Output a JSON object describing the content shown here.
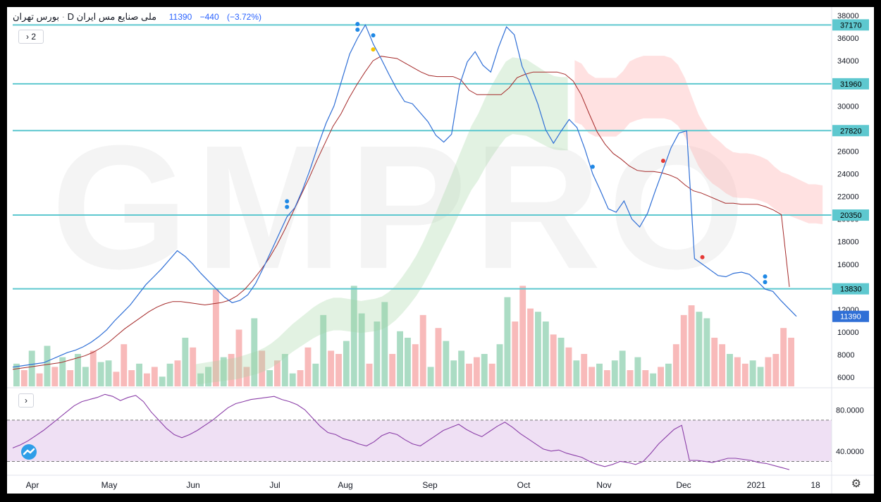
{
  "legend": {
    "exchange": "بورس تهران",
    "interval": "D",
    "symbol": "ملی صنایع مس ایران",
    "price": "11390",
    "change": "−440",
    "change_pct": "(−3.72%)"
  },
  "buttons": {
    "collapse_main": "2",
    "collapse_indicator": "›"
  },
  "watermark": "GMPRO",
  "colors": {
    "price": "#2f6fd6",
    "baseline": "#a52a2a",
    "levels": "#5ec8cf",
    "cloud_bull": "#9fd49f",
    "cloud_bear": "#ffa8a8",
    "vol_up": "#8fd0b0",
    "vol_down": "#f5a3a3",
    "rsi": "#8b3fa8",
    "rsi_band": "#efe0f4"
  },
  "chart_data": [
    {
      "type": "line",
      "y_axis_ticks": [
        6000,
        8000,
        10000,
        12000,
        14000,
        16000,
        18000,
        20000,
        22000,
        24000,
        26000,
        28000,
        30000,
        32000,
        34000,
        36000,
        38000
      ],
      "ylim": [
        5200,
        38500
      ],
      "x_axis_labels": [
        "Apr",
        "May",
        "Jun",
        "Jul",
        "Aug",
        "Sep",
        "Oct",
        "Nov",
        "Dec",
        "2021",
        "18"
      ],
      "levels": [
        37170,
        31960,
        27820,
        20350,
        13830
      ],
      "last_price": 11390,
      "series": [
        {
          "values": [
            6900,
            7000,
            7100,
            7200,
            7300,
            7600,
            7900,
            8200,
            8400,
            8700,
            9100,
            9600,
            10200,
            11000,
            11700,
            12400,
            13300,
            14200,
            14900,
            15600,
            16400,
            17200,
            16700,
            16000,
            15200,
            14500,
            13800,
            13100,
            12600,
            12800,
            13300,
            14300,
            15700,
            17200,
            18700,
            20200,
            21000,
            22600,
            24500,
            26600,
            28500,
            30000,
            32300,
            34600,
            36000,
            37170,
            35500,
            34200,
            32800,
            31500,
            30400,
            30200,
            29400,
            28600,
            27400,
            26800,
            27500,
            31800,
            33900,
            34800,
            33600,
            33000,
            35200,
            37000,
            36300,
            33500,
            32000,
            30200,
            27900,
            26700,
            27800,
            28800,
            28100,
            26200,
            24000,
            22500,
            20900,
            20600,
            21600,
            20000,
            19300,
            20500,
            22500,
            24400,
            26300,
            27600,
            27800,
            16500,
            16000,
            15500,
            15000,
            14900,
            15200,
            15300,
            15100,
            14500,
            13800,
            13600,
            12800,
            12100,
            11390
          ]
        },
        {
          "values": [
            6700,
            6800,
            6900,
            7000,
            7100,
            7200,
            7300,
            7500,
            7700,
            7900,
            8200,
            8600,
            9100,
            9700,
            10300,
            10800,
            11300,
            11800,
            12200,
            12500,
            12700,
            12700,
            12600,
            12500,
            12400,
            12500,
            12600,
            12800,
            13200,
            13800,
            14600,
            15500,
            16500,
            17700,
            19100,
            20600,
            22100,
            23600,
            25200,
            26700,
            28200,
            29300,
            30700,
            31900,
            33000,
            34000,
            34400,
            34300,
            34200,
            33800,
            33400,
            33000,
            32700,
            32600,
            32600,
            32600,
            32300,
            31400,
            31000,
            31000,
            31000,
            31000,
            31600,
            32500,
            32800,
            33000,
            33000,
            33000,
            33000,
            32800,
            32200,
            31000,
            29300,
            27700,
            26600,
            25800,
            25300,
            24700,
            24300,
            24200,
            24200,
            24100,
            23900,
            23600,
            23000,
            22500,
            22300,
            22000,
            21700,
            21400,
            21400,
            21300,
            21300,
            21300,
            21100,
            20800,
            20400,
            14000
          ]
        }
      ]
    },
    {
      "type": "bar",
      "volume_colors": [
        "up",
        "down",
        "up",
        "down",
        "up",
        "down",
        "up",
        "down",
        "up",
        "up",
        "down",
        "up",
        "up",
        "down",
        "down",
        "down",
        "up",
        "down",
        "down",
        "up",
        "up",
        "down",
        "up",
        "down",
        "up",
        "up",
        "down",
        "up",
        "down",
        "down",
        "down",
        "up",
        "down",
        "up",
        "down",
        "up",
        "up",
        "down",
        "down",
        "up",
        "up",
        "down",
        "down",
        "up",
        "up",
        "up",
        "down",
        "up",
        "up",
        "down",
        "up",
        "up",
        "down",
        "down",
        "up",
        "down",
        "up",
        "up",
        "up",
        "down",
        "down",
        "up",
        "down",
        "up",
        "up",
        "down",
        "down",
        "down",
        "up",
        "up",
        "down",
        "up",
        "down",
        "up",
        "down",
        "down",
        "up",
        "down",
        "up",
        "up",
        "down",
        "up",
        "down",
        "up",
        "down",
        "up",
        "down",
        "down",
        "down",
        "up",
        "up",
        "down",
        "down",
        "up",
        "down",
        "down",
        "up",
        "up",
        "down",
        "down",
        "down",
        "down"
      ],
      "volume_values": [
        0.14,
        0.1,
        0.22,
        0.08,
        0.25,
        0.12,
        0.18,
        0.1,
        0.2,
        0.12,
        0.22,
        0.15,
        0.16,
        0.09,
        0.26,
        0.1,
        0.14,
        0.08,
        0.12,
        0.06,
        0.14,
        0.16,
        0.3,
        0.24,
        0.08,
        0.12,
        0.6,
        0.18,
        0.2,
        0.35,
        0.12,
        0.42,
        0.22,
        0.1,
        0.16,
        0.2,
        0.08,
        0.1,
        0.24,
        0.14,
        0.44,
        0.22,
        0.2,
        0.28,
        0.62,
        0.45,
        0.14,
        0.4,
        0.52,
        0.2,
        0.34,
        0.3,
        0.26,
        0.44,
        0.12,
        0.36,
        0.28,
        0.16,
        0.22,
        0.14,
        0.18,
        0.2,
        0.14,
        0.26,
        0.55,
        0.4,
        0.62,
        0.48,
        0.46,
        0.4,
        0.32,
        0.3,
        0.24,
        0.16,
        0.2,
        0.12,
        0.14,
        0.1,
        0.16,
        0.22,
        0.1,
        0.18,
        0.1,
        0.08,
        0.12,
        0.14,
        0.26,
        0.44,
        0.5,
        0.46,
        0.42,
        0.3,
        0.26,
        0.2,
        0.18,
        0.14,
        0.16,
        0.12,
        0.18,
        0.2,
        0.36,
        0.3
      ]
    },
    {
      "type": "line",
      "y_axis_ticks": [
        40,
        80
      ],
      "y_axis_tick_labels": [
        "40.0000",
        "80.0000"
      ],
      "ylim": [
        18,
        100
      ],
      "band": [
        30,
        70
      ],
      "series": [
        {
          "values": [
            43,
            46,
            50,
            55,
            60,
            66,
            72,
            78,
            84,
            88,
            90,
            92,
            95,
            93,
            89,
            92,
            94,
            88,
            78,
            70,
            62,
            56,
            53,
            56,
            60,
            65,
            70,
            76,
            82,
            86,
            88,
            90,
            91,
            92,
            93,
            90,
            88,
            85,
            80,
            72,
            64,
            58,
            56,
            52,
            50,
            47,
            45,
            49,
            55,
            58,
            56,
            51,
            47,
            45,
            50,
            55,
            60,
            63,
            66,
            61,
            57,
            54,
            59,
            64,
            68,
            63,
            57,
            52,
            47,
            42,
            40,
            41,
            38,
            36,
            34,
            30,
            27,
            25,
            27,
            30,
            29,
            27,
            30,
            38,
            47,
            54,
            61,
            65,
            31,
            31,
            30,
            29,
            31,
            33,
            33,
            32,
            31,
            29,
            28,
            26,
            24,
            22
          ]
        }
      ]
    }
  ]
}
